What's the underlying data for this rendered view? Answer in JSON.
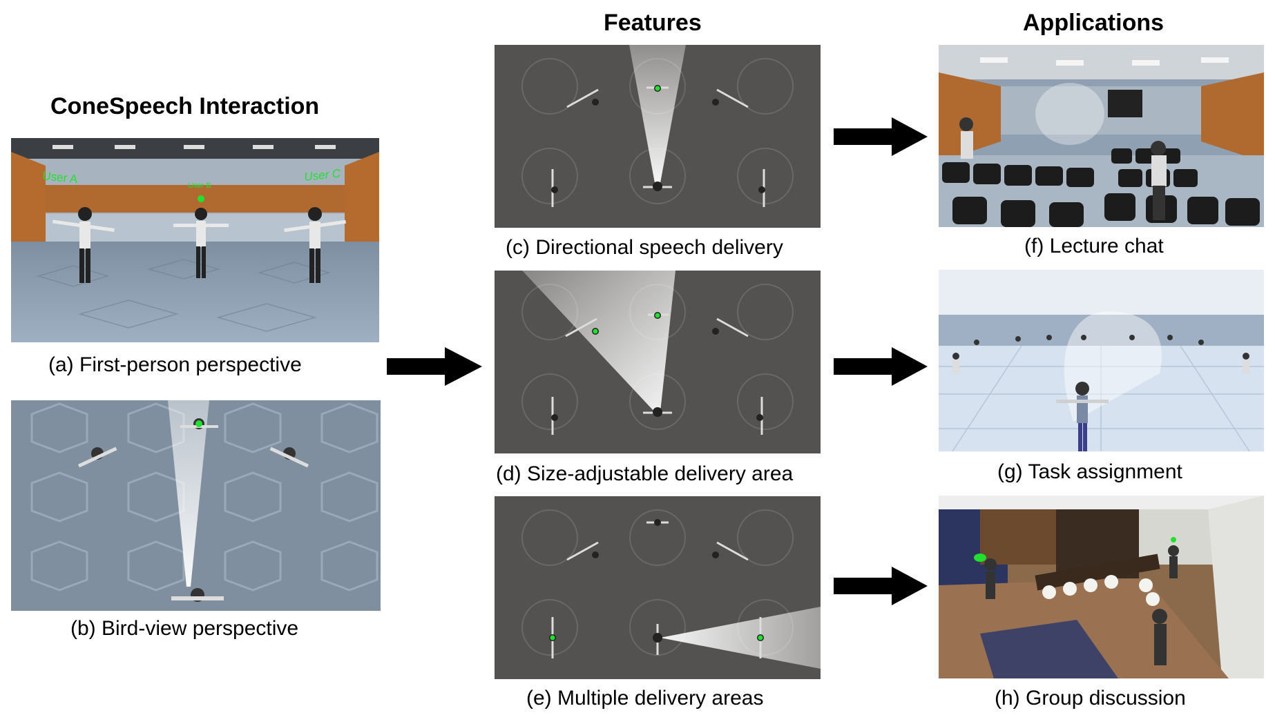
{
  "headings": {
    "interaction": "ConeSpeech Interaction",
    "features": "Features",
    "applications": "Applications"
  },
  "panels": {
    "a": {
      "caption": "(a)  First-person perspective",
      "labels": {
        "user_a": "User A",
        "user_b": "User B",
        "user_c": "User C"
      }
    },
    "b": {
      "caption": "(b)  Bird-view perspective"
    },
    "c": {
      "caption": "(c)  Directional speech delivery"
    },
    "d": {
      "caption": "(d)  Size-adjustable delivery area"
    },
    "e": {
      "caption": "(e)  Multiple delivery areas"
    },
    "f": {
      "caption": "(f)  Lecture chat"
    },
    "g": {
      "caption": "(g)  Task assignment"
    },
    "h": {
      "caption": "(h)  Group discussion"
    }
  },
  "colors": {
    "highlight": "#22e030",
    "arrow": "#000000",
    "floor_dark": "#545250",
    "floor_blue": "#7d8fa3"
  }
}
